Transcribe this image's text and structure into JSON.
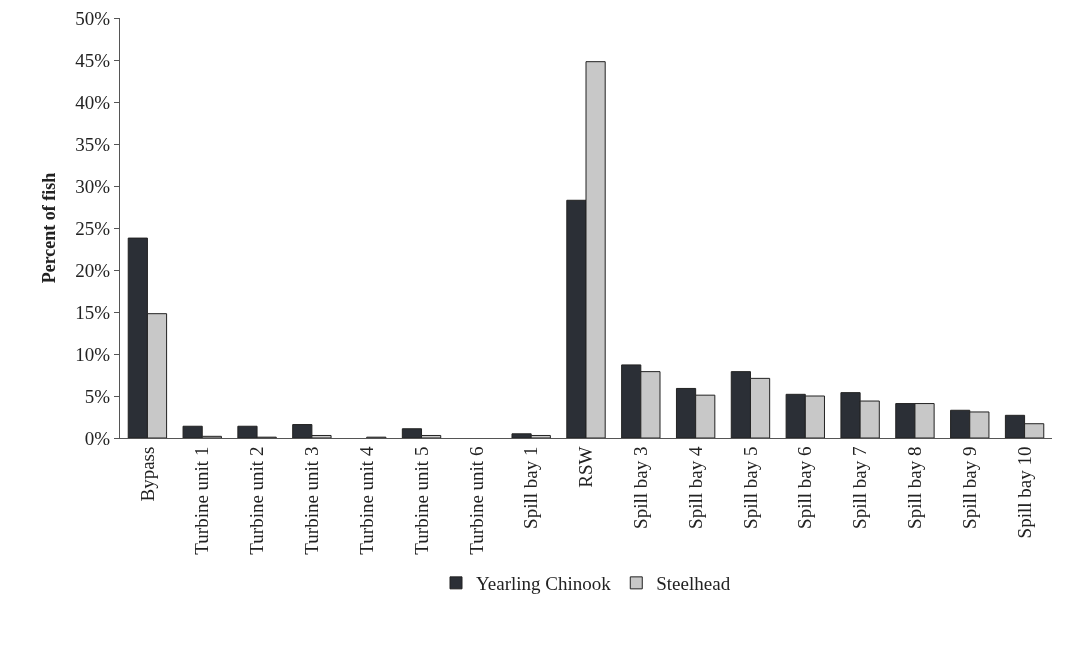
{
  "chart_data": {
    "type": "bar",
    "ylabel": "Percent of fish",
    "categories": [
      "Bypass",
      "Turbine unit 1",
      "Turbine unit 2",
      "Turbine unit 3",
      "Turbine unit 4",
      "Turbine unit 5",
      "Turbine unit 6",
      "Spill bay 1",
      "RSW",
      "Spill bay 3",
      "Spill bay 4",
      "Spill bay 5",
      "Spill bay 6",
      "Spill bay 7",
      "Spill bay 8",
      "Spill bay 9",
      "Spill bay 10"
    ],
    "series": [
      {
        "name": "Yearling Chinook",
        "color": "#2b2f36",
        "values": [
          23.8,
          1.4,
          1.4,
          1.6,
          0,
          1.1,
          0,
          0.5,
          28.3,
          8.7,
          5.9,
          7.9,
          5.2,
          5.4,
          4.1,
          3.3,
          2.7
        ]
      },
      {
        "name": "Steelhead",
        "color": "#c8c8c8",
        "values": [
          14.8,
          0.2,
          0.1,
          0.3,
          0.1,
          0.3,
          0,
          0.3,
          44.8,
          7.9,
          5.1,
          7.1,
          5.0,
          4.4,
          4.1,
          3.1,
          1.7
        ]
      }
    ],
    "ylim": [
      0,
      50
    ],
    "yticks": [
      {
        "value": 0,
        "label": "0%"
      },
      {
        "value": 5,
        "label": "5%"
      },
      {
        "value": 10,
        "label": "10%"
      },
      {
        "value": 15,
        "label": "15%"
      },
      {
        "value": 20,
        "label": "20%"
      },
      {
        "value": 25,
        "label": "25%"
      },
      {
        "value": 30,
        "label": "30%"
      },
      {
        "value": 35,
        "label": "35%"
      },
      {
        "value": 40,
        "label": "40%"
      },
      {
        "value": 45,
        "label": "45%"
      },
      {
        "value": 50,
        "label": "50%"
      }
    ],
    "grid": false,
    "legend": "bottom"
  }
}
